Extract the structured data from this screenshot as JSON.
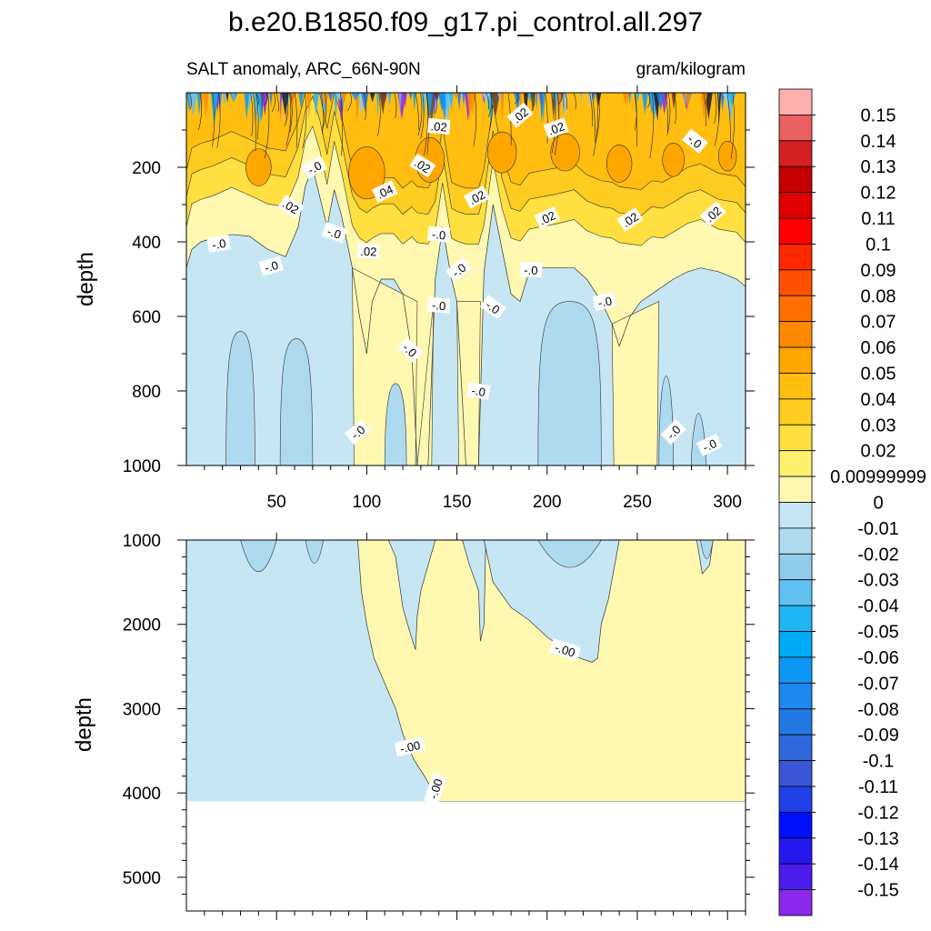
{
  "chart_data": {
    "type": "heatmap",
    "title": "b.e20.B1850.f09_g17.pi_control.all.297",
    "subtitle_left": "SALT anomaly, ARC_66N-90N",
    "subtitle_right": "gram/kilogram",
    "xlabel": "",
    "ylabel": "depth",
    "xlim": [
      0,
      310
    ],
    "xticks": [
      "50",
      "100",
      "150",
      "200",
      "250",
      "300"
    ],
    "xtick_values": [
      50,
      100,
      150,
      200,
      250,
      300
    ],
    "upper_panel": {
      "ylim": [
        0,
        1000
      ],
      "yticks": [
        "200",
        "400",
        "600",
        "800",
        "1000"
      ],
      "ytick_values": [
        200,
        400,
        600,
        800,
        1000
      ]
    },
    "lower_panel": {
      "ylim": [
        1000,
        5400
      ],
      "yticks": [
        "1000",
        "2000",
        "3000",
        "4000",
        "5000"
      ],
      "ytick_values": [
        1000,
        2000,
        3000,
        4000,
        5000
      ],
      "data_bottom_depth": 4100
    },
    "contour_labels_upper": [
      {
        "text": ".02",
        "x": 140,
        "d": 90
      },
      {
        "text": ".02",
        "x": 185,
        "d": 60
      },
      {
        "text": ".02",
        "x": 205,
        "d": 95
      },
      {
        "text": "-.0",
        "x": 282,
        "d": 130
      },
      {
        "text": "-.0",
        "x": 71,
        "d": 200
      },
      {
        "text": ".02",
        "x": 131,
        "d": 195
      },
      {
        "text": ".04",
        "x": 110,
        "d": 265
      },
      {
        "text": ".02",
        "x": 161,
        "d": 280
      },
      {
        "text": ".02",
        "x": 58,
        "d": 305
      },
      {
        "text": ".02",
        "x": 200,
        "d": 335
      },
      {
        "text": ".02",
        "x": 246,
        "d": 340
      },
      {
        "text": ".02",
        "x": 292,
        "d": 325
      },
      {
        "text": "-.0",
        "x": 18,
        "d": 405
      },
      {
        "text": "-.0",
        "x": 82,
        "d": 375
      },
      {
        "text": "-.0",
        "x": 140,
        "d": 380
      },
      {
        "text": ".02",
        "x": 101,
        "d": 425
      },
      {
        "text": "-.0",
        "x": 47,
        "d": 465
      },
      {
        "text": "-.0",
        "x": 151,
        "d": 475
      },
      {
        "text": "-.0",
        "x": 191,
        "d": 475
      },
      {
        "text": "-.0",
        "x": 140,
        "d": 570
      },
      {
        "text": "-.0",
        "x": 170,
        "d": 575
      },
      {
        "text": "-.0",
        "x": 232,
        "d": 560
      },
      {
        "text": "-.0",
        "x": 124,
        "d": 690
      },
      {
        "text": "-.0",
        "x": 162,
        "d": 800
      },
      {
        "text": "-.0",
        "x": 95,
        "d": 910
      },
      {
        "text": "-.0",
        "x": 270,
        "d": 910
      },
      {
        "text": "-.0",
        "x": 290,
        "d": 945
      }
    ],
    "contour_labels_lower": [
      {
        "text": "-.00",
        "x": 210,
        "d": 2300
      },
      {
        "text": "-.00",
        "x": 124,
        "d": 3450
      },
      {
        "text": "-.00",
        "x": 138,
        "d": 3950
      }
    ],
    "colorbar": {
      "labels": [
        "0.15",
        "0.14",
        "0.13",
        "0.12",
        "0.11",
        "0.1",
        "0.09",
        "0.08",
        "0.07",
        "0.06",
        "0.05",
        "0.04",
        "0.03",
        "0.02",
        "0.00999999",
        "0",
        "-0.01",
        "-0.02",
        "-0.03",
        "-0.04",
        "-0.05",
        "-0.06",
        "-0.07",
        "-0.08",
        "-0.09",
        "-0.1",
        "-0.11",
        "-0.12",
        "-0.13",
        "-0.14",
        "-0.15"
      ],
      "colors": [
        "#FFB0B0",
        "#E86060",
        "#D42020",
        "#C40000",
        "#E00000",
        "#FF0000",
        "#FF2800",
        "#FF5000",
        "#FF6E00",
        "#FF8A00",
        "#FFA600",
        "#FFBE10",
        "#FFCC22",
        "#FFE040",
        "#FFF070",
        "#FFF8B0",
        "#C6E6F4",
        "#AEDAF0",
        "#90CCEC",
        "#60C0F0",
        "#20B4F4",
        "#00AAF4",
        "#0E98F4",
        "#1C88F0",
        "#2478E4",
        "#2E68DC",
        "#3A56D4",
        "#2040E8",
        "#0010FF",
        "#2818F0",
        "#4C1CEE",
        "#8C28EC"
      ]
    },
    "fill_colors": {
      "zero_to_pos01": "#FFF8B0",
      "neg01_to_zero": "#C6E6F4",
      "neg02_to_neg01": "#AEDAF0",
      "pos01_to_pos02": "#FFE040",
      "pos02_to_pos03": "#FFCC22",
      "pos03_to_pos04": "#FFBE10",
      "pos04_to_pos05": "#FFA600",
      "blank": "#FFFFFF"
    }
  }
}
